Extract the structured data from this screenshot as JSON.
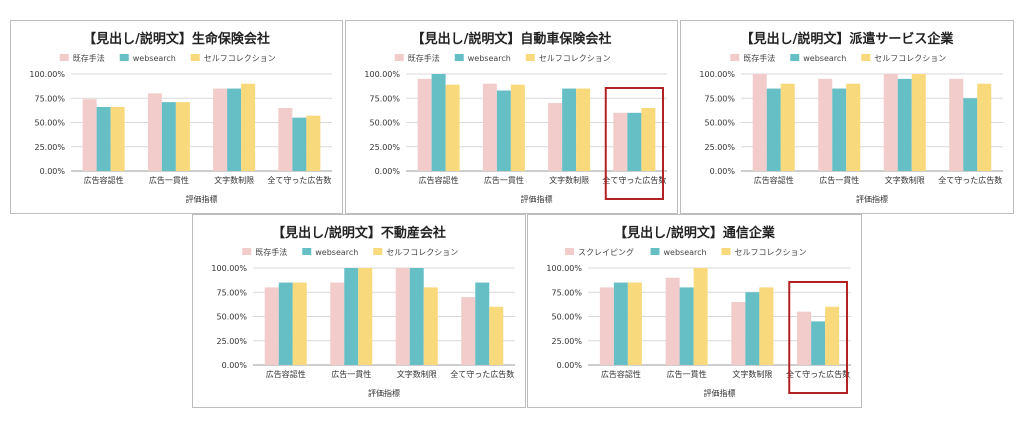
{
  "colors": {
    "series": [
      "#f2cbcb",
      "#67bfc6",
      "#f8d97b"
    ],
    "grid": "#d9d9d9",
    "highlight": "#b22222"
  },
  "chart_data": [
    {
      "type": "bar",
      "title": "【見出し/説明文】生命保険会社",
      "xlabel": "評価指標",
      "ylabel": "",
      "ylim": [
        0,
        100
      ],
      "yticks": [
        "0.00%",
        "25.00%",
        "50.00%",
        "75.00%",
        "100.00%"
      ],
      "categories": [
        "広告容認性",
        "広告一貫性",
        "文字数制限",
        "全て守った広告数"
      ],
      "series": [
        {
          "name": "既存手法",
          "values": [
            74,
            80,
            85,
            65
          ]
        },
        {
          "name": "websearch",
          "values": [
            66,
            71,
            85,
            55
          ]
        },
        {
          "name": "セルフコレクション",
          "values": [
            66,
            71,
            90,
            57
          ]
        }
      ],
      "highlight_category": null
    },
    {
      "type": "bar",
      "title": "【見出し/説明文】自動車保険会社",
      "xlabel": "評価指標",
      "ylabel": "",
      "ylim": [
        0,
        100
      ],
      "yticks": [
        "0.00%",
        "25.00%",
        "50.00%",
        "75.00%",
        "100.00%"
      ],
      "categories": [
        "広告容認性",
        "広告一貫性",
        "文字数制限",
        "全て守った広告数"
      ],
      "series": [
        {
          "name": "既存手法",
          "values": [
            95,
            90,
            70,
            60
          ]
        },
        {
          "name": "websearch",
          "values": [
            100,
            83,
            85,
            60
          ]
        },
        {
          "name": "セルフコレクション",
          "values": [
            89,
            89,
            85,
            65
          ]
        }
      ],
      "highlight_category": 3
    },
    {
      "type": "bar",
      "title": "【見出し/説明文】派遣サービス企業",
      "xlabel": "評価指標",
      "ylabel": "",
      "ylim": [
        0,
        100
      ],
      "yticks": [
        "0.00%",
        "25.00%",
        "50.00%",
        "75.00%",
        "100.00%"
      ],
      "categories": [
        "広告容認性",
        "広告一貫性",
        "文字数制限",
        "全て守った広告数"
      ],
      "series": [
        {
          "name": "既存手法",
          "values": [
            100,
            95,
            100,
            95
          ]
        },
        {
          "name": "websearch",
          "values": [
            85,
            85,
            95,
            75
          ]
        },
        {
          "name": "セルフコレクション",
          "values": [
            90,
            90,
            100,
            90
          ]
        }
      ],
      "highlight_category": null
    },
    {
      "type": "bar",
      "title": "【見出し/説明文】不動産会社",
      "xlabel": "評価指標",
      "ylabel": "",
      "ylim": [
        0,
        100
      ],
      "yticks": [
        "0.00%",
        "25.00%",
        "50.00%",
        "75.00%",
        "100.00%"
      ],
      "categories": [
        "広告容認性",
        "広告一貫性",
        "文字数制限",
        "全て守った広告数"
      ],
      "series": [
        {
          "name": "既存手法",
          "values": [
            80,
            85,
            100,
            70
          ]
        },
        {
          "name": "websearch",
          "values": [
            85,
            100,
            100,
            85
          ]
        },
        {
          "name": "セルフコレクション",
          "values": [
            85,
            100,
            80,
            60
          ]
        }
      ],
      "highlight_category": null
    },
    {
      "type": "bar",
      "title": "【見出し/説明文】通信企業",
      "xlabel": "評価指標",
      "ylabel": "",
      "ylim": [
        0,
        100
      ],
      "yticks": [
        "0.00%",
        "25.00%",
        "50.00%",
        "75.00%",
        "100.00%"
      ],
      "categories": [
        "広告容認性",
        "広告一貫性",
        "文字数制限",
        "全て守った広告数"
      ],
      "series": [
        {
          "name": "スクレイピング",
          "values": [
            80,
            90,
            65,
            55
          ]
        },
        {
          "name": "websearch",
          "values": [
            85,
            80,
            75,
            45
          ]
        },
        {
          "name": "セルフコレクション",
          "values": [
            85,
            100,
            80,
            60
          ]
        }
      ],
      "highlight_category": 3
    }
  ]
}
